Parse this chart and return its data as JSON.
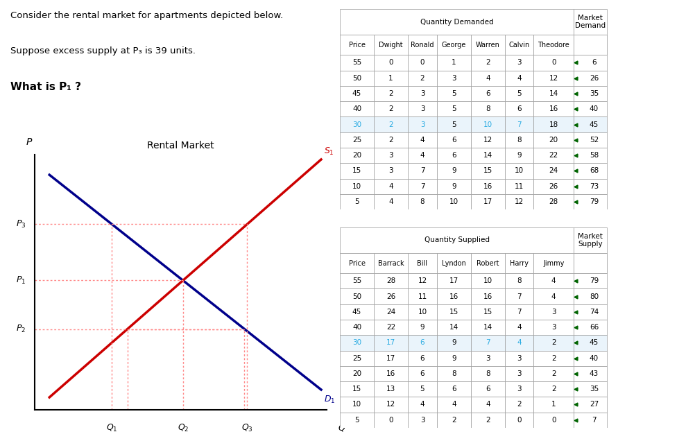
{
  "title_text": "Consider the rental market for apartments depicted below.",
  "subtitle1": "Suppose excess supply at P₃ is 39 units.",
  "subtitle2": "What is P₁ ?",
  "graph_title": "Rental Market",
  "demand_color": "#00008B",
  "supply_color": "#CC0000",
  "dotted_color": "#FF8888",
  "highlight_color": "#29ABE2",
  "demand_table": {
    "header_main": "Quantity Demanded",
    "header_last": "Market\nDemand",
    "col_headers": [
      "Price",
      "Dwight",
      "Ronald",
      "George",
      "Warren",
      "Calvin",
      "Theodore"
    ],
    "rows": [
      [
        "55",
        "0",
        "0",
        "1",
        "2",
        "3",
        "0",
        "6"
      ],
      [
        "50",
        "1",
        "2",
        "3",
        "4",
        "4",
        "12",
        "26"
      ],
      [
        "45",
        "2",
        "3",
        "5",
        "6",
        "5",
        "14",
        "35"
      ],
      [
        "40",
        "2",
        "3",
        "5",
        "8",
        "6",
        "16",
        "40"
      ],
      [
        "30",
        "2",
        "3",
        "5",
        "10",
        "7",
        "18",
        "45"
      ],
      [
        "25",
        "2",
        "4",
        "6",
        "12",
        "8",
        "20",
        "52"
      ],
      [
        "20",
        "3",
        "4",
        "6",
        "14",
        "9",
        "22",
        "58"
      ],
      [
        "15",
        "3",
        "7",
        "9",
        "15",
        "10",
        "24",
        "68"
      ],
      [
        "10",
        "4",
        "7",
        "9",
        "16",
        "11",
        "26",
        "73"
      ],
      [
        "5",
        "4",
        "8",
        "10",
        "17",
        "12",
        "28",
        "79"
      ]
    ],
    "highlight_row": 4,
    "highlight_cols": [
      0,
      1,
      2,
      4,
      5
    ]
  },
  "supply_table": {
    "header_main": "Quantity Supplied",
    "header_last": "Market\nSupply",
    "col_headers": [
      "Price",
      "Barrack",
      "Bill",
      "Lyndon",
      "Robert",
      "Harry",
      "Jimmy"
    ],
    "rows": [
      [
        "55",
        "28",
        "12",
        "17",
        "10",
        "8",
        "4",
        "79"
      ],
      [
        "50",
        "26",
        "11",
        "16",
        "16",
        "7",
        "4",
        "80"
      ],
      [
        "45",
        "24",
        "10",
        "15",
        "15",
        "7",
        "3",
        "74"
      ],
      [
        "40",
        "22",
        "9",
        "14",
        "14",
        "4",
        "3",
        "66"
      ],
      [
        "30",
        "17",
        "6",
        "9",
        "7",
        "4",
        "2",
        "45"
      ],
      [
        "25",
        "17",
        "6",
        "9",
        "3",
        "3",
        "2",
        "40"
      ],
      [
        "20",
        "16",
        "6",
        "8",
        "8",
        "3",
        "2",
        "43"
      ],
      [
        "15",
        "13",
        "5",
        "6",
        "6",
        "3",
        "2",
        "35"
      ],
      [
        "10",
        "12",
        "4",
        "4",
        "4",
        "2",
        "1",
        "27"
      ],
      [
        "5",
        "0",
        "3",
        "2",
        "2",
        "0",
        "0",
        "7"
      ]
    ],
    "highlight_row": 4,
    "highlight_cols": [
      0,
      1,
      2,
      4,
      5
    ]
  }
}
